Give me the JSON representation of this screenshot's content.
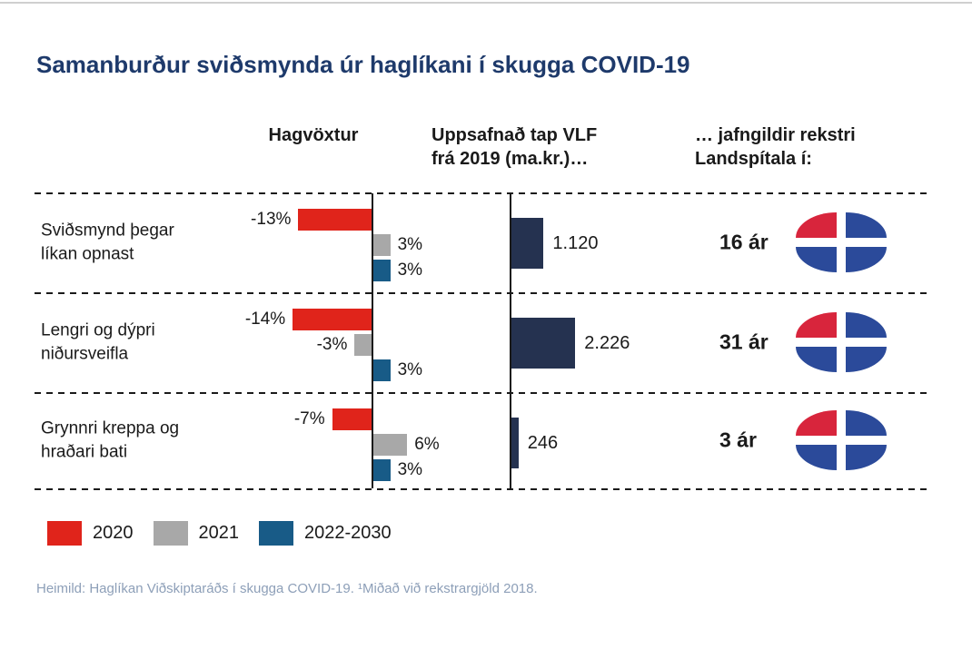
{
  "title": "Samanburður sviðsmynda úr haglíkani í skugga COVID-19",
  "columns": {
    "growth": "Hagvöxtur",
    "loss": "Uppsafnað tap VLF frá 2019 (ma.kr.)…",
    "equiv": "… jafngildir rekstri Landspítala í:"
  },
  "rows": [
    {
      "label": "Sviðsmynd þegar líkan opnast",
      "growth": {
        "y2020": "-13%",
        "y2021": "3%",
        "y2022_2030": "3%"
      },
      "loss_label": "1.120",
      "equiv": "16 ár"
    },
    {
      "label": "Lengri og dýpri niðursveifla",
      "growth": {
        "y2020": "-14%",
        "y2021": "-3%",
        "y2022_2030": "3%"
      },
      "loss_label": "2.226",
      "equiv": "31 ár"
    },
    {
      "label": "Grynnri kreppa og hraðari bati",
      "growth": {
        "y2020": "-7%",
        "y2021": "6%",
        "y2022_2030": "3%"
      },
      "loss_label": "246",
      "equiv": "3 ár"
    }
  ],
  "legend": [
    {
      "label": "2020",
      "color": "#e0241b"
    },
    {
      "label": "2021",
      "color": "#a8a8a8"
    },
    {
      "label": "2022-2030",
      "color": "#185b87"
    }
  ],
  "footer": "Heimild: Haglíkan Viðskiptaráðs í skugga COVID-19. ¹Miðað við rekstrargjöld 2018.",
  "colors": {
    "red": "#e0241b",
    "gray": "#a8a8a8",
    "blue": "#185b87",
    "navy": "#253250",
    "title": "#1e3a6b",
    "footer": "#8d9fb8",
    "logo_red": "#d8253c",
    "logo_blue": "#2b4a9a"
  },
  "chart_data": [
    {
      "type": "bar",
      "orientation": "horizontal",
      "title": "Hagvöxtur",
      "unit": "percent",
      "categories": [
        "Sviðsmynd þegar líkan opnast",
        "Lengri og dýpri niðursveifla",
        "Grynnri kreppa og hraðari bati"
      ],
      "series": [
        {
          "name": "2020",
          "color": "#e0241b",
          "values": [
            -13,
            -14,
            -7
          ]
        },
        {
          "name": "2021",
          "color": "#a8a8a8",
          "values": [
            3,
            -3,
            6
          ]
        },
        {
          "name": "2022-2030",
          "color": "#185b87",
          "values": [
            3,
            3,
            3
          ]
        }
      ],
      "value_labels": [
        [
          "-13%",
          "3%",
          "3%"
        ],
        [
          "-14%",
          "-3%",
          "3%"
        ],
        [
          "-7%",
          "6%",
          "3%"
        ]
      ],
      "axis": "zero-centered vertical baseline",
      "legend_position": "bottom"
    },
    {
      "type": "bar",
      "orientation": "horizontal",
      "title": "Uppsafnað tap VLF frá 2019 (ma.kr.)…",
      "categories": [
        "Sviðsmynd þegar líkan opnast",
        "Lengri og dýpri niðursveifla",
        "Grynnri kreppa og hraðari bati"
      ],
      "values": [
        1120,
        2226,
        246
      ],
      "value_labels": [
        "1.120",
        "2.226",
        "246"
      ],
      "color": "#253250"
    },
    {
      "type": "table",
      "title": "… jafngildir rekstri Landspítala í:",
      "categories": [
        "Sviðsmynd þegar líkan opnast",
        "Lengri og dýpri niðursveifla",
        "Grynnri kreppa og hraðari bati"
      ],
      "values": [
        "16 ár",
        "31 ár",
        "3 ár"
      ]
    }
  ]
}
